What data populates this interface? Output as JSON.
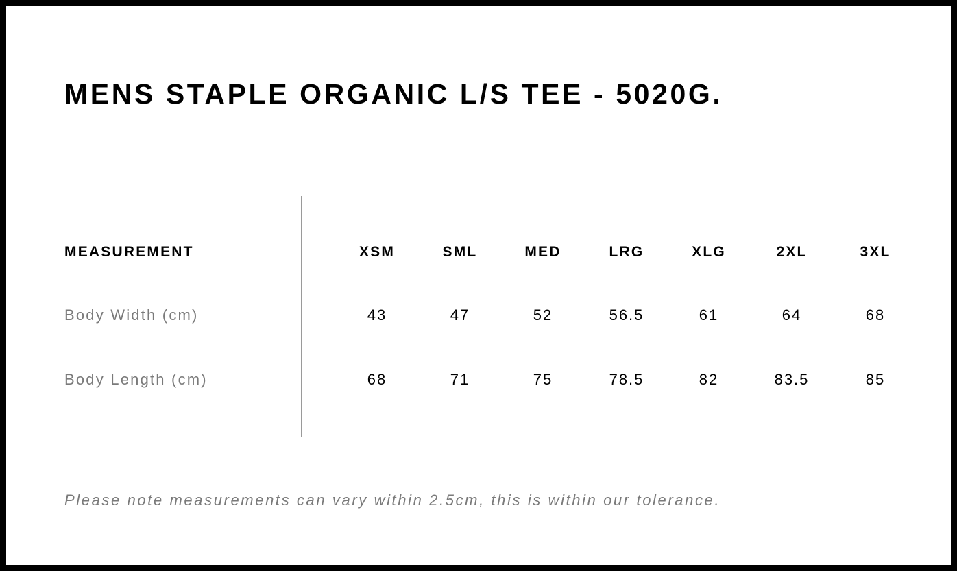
{
  "title": "MENS STAPLE ORGANIC L/S TEE - 5020G.",
  "table": {
    "header_label": "MEASUREMENT",
    "sizes": [
      "XSM",
      "SML",
      "MED",
      "LRG",
      "XLG",
      "2XL",
      "3XL"
    ],
    "rows": [
      {
        "label": "Body Width (cm)",
        "values": [
          "43",
          "47",
          "52",
          "56.5",
          "61",
          "64",
          "68"
        ]
      },
      {
        "label": "Body Length (cm)",
        "values": [
          "68",
          "71",
          "75",
          "78.5",
          "82",
          "83.5",
          "85"
        ]
      }
    ]
  },
  "note": "Please note measurements can vary within 2.5cm, this is within our tolerance."
}
